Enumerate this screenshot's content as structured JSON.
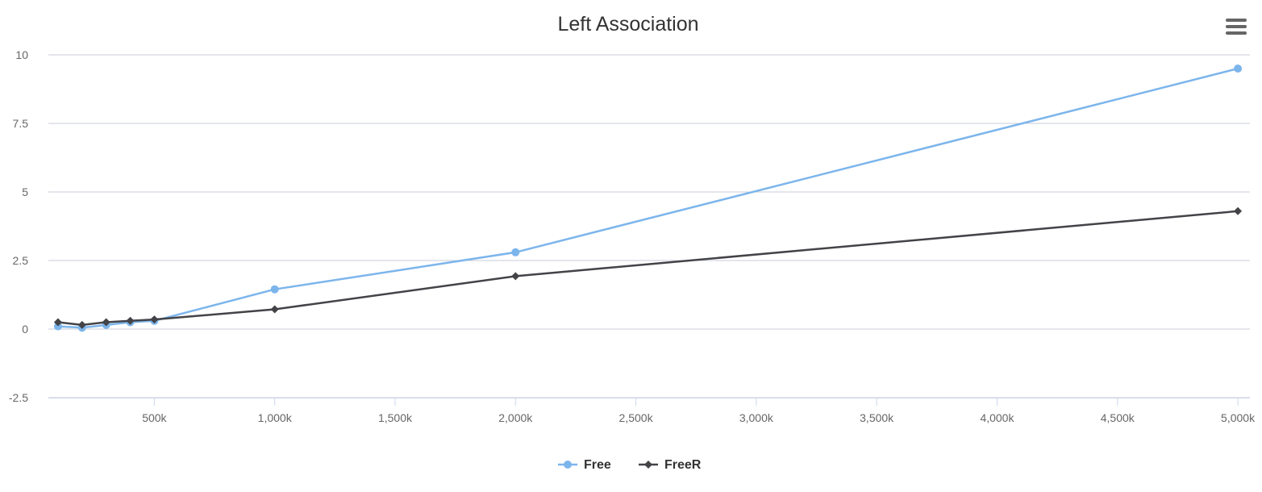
{
  "chart_data": {
    "type": "line",
    "title": "Left Association",
    "xlabel": "",
    "ylabel": "",
    "xlim": [
      60,
      5050
    ],
    "ylim": [
      -2.5,
      10
    ],
    "x_ticks": [
      500,
      1000,
      1500,
      2000,
      2500,
      3000,
      3500,
      4000,
      4500,
      5000
    ],
    "x_tick_labels": [
      "500k",
      "1,000k",
      "1,500k",
      "2,000k",
      "2,500k",
      "3,000k",
      "3,500k",
      "4,000k",
      "4,500k",
      "5,000k"
    ],
    "y_ticks": [
      -2.5,
      0,
      2.5,
      5,
      7.5,
      10
    ],
    "y_tick_labels": [
      "-2.5",
      "0",
      "2.5",
      "5",
      "7.5",
      "10"
    ],
    "grid": true,
    "legend_position": "bottom-center",
    "series": [
      {
        "name": "Free",
        "color": "#7cb5ec",
        "marker": "circle",
        "x": [
          100,
          200,
          300,
          400,
          500,
          1000,
          2000,
          5000
        ],
        "y": [
          0.1,
          0.05,
          0.15,
          0.25,
          0.3,
          1.45,
          2.8,
          9.5
        ]
      },
      {
        "name": "FreeR",
        "color": "#434348",
        "marker": "diamond",
        "x": [
          100,
          200,
          300,
          400,
          500,
          1000,
          2000,
          5000
        ],
        "y": [
          0.25,
          0.15,
          0.25,
          0.3,
          0.35,
          0.72,
          1.93,
          4.3
        ]
      }
    ]
  },
  "colors": {
    "grid": "#c8ced8",
    "axis": "#ccd6eb",
    "tick_text": "#666666",
    "title_text": "#333333",
    "legend_text": "#333333",
    "menu_icon": "#666666"
  },
  "menu": {
    "icon": "hamburger-menu-icon"
  }
}
